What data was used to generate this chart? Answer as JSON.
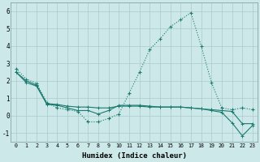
{
  "xlabel": "Humidex (Indice chaleur)",
  "background_color": "#cce8e8",
  "grid_color": "#aacccc",
  "line_color": "#1a7a6e",
  "xlim": [
    -0.5,
    23.5
  ],
  "ylim": [
    -1.5,
    6.5
  ],
  "yticks": [
    -1,
    0,
    1,
    2,
    3,
    4,
    5,
    6
  ],
  "xticks": [
    0,
    1,
    2,
    3,
    4,
    5,
    6,
    7,
    8,
    9,
    10,
    11,
    12,
    13,
    14,
    15,
    16,
    17,
    18,
    19,
    20,
    21,
    22,
    23
  ],
  "series1_x": [
    0,
    1,
    2,
    3,
    4,
    5,
    6,
    7,
    8,
    9,
    10,
    11,
    12,
    13,
    14,
    15,
    16,
    17,
    18,
    19,
    20,
    21,
    22,
    23
  ],
  "series1_y": [
    2.7,
    2.1,
    1.85,
    0.75,
    0.45,
    0.35,
    0.25,
    -0.35,
    -0.35,
    -0.15,
    0.1,
    1.3,
    2.5,
    3.8,
    4.4,
    5.1,
    5.5,
    5.9,
    4.0,
    1.9,
    0.45,
    0.35,
    0.45,
    0.35
  ],
  "series2_x": [
    0,
    1,
    2,
    3,
    4,
    5,
    6,
    7,
    8,
    9,
    10,
    11,
    12,
    13,
    14,
    15,
    16,
    17,
    18,
    19,
    20,
    21,
    22,
    23
  ],
  "series2_y": [
    2.5,
    2.0,
    1.75,
    0.7,
    0.65,
    0.55,
    0.5,
    0.5,
    0.45,
    0.45,
    0.55,
    0.55,
    0.55,
    0.5,
    0.5,
    0.5,
    0.5,
    0.45,
    0.4,
    0.35,
    0.3,
    0.25,
    -0.45,
    -0.45
  ],
  "series3_x": [
    0,
    1,
    2,
    3,
    4,
    5,
    6,
    7,
    8,
    9,
    10,
    11,
    12,
    13,
    14,
    15,
    16,
    17,
    18,
    19,
    20,
    21,
    22,
    23
  ],
  "series3_y": [
    2.5,
    1.9,
    1.7,
    0.65,
    0.6,
    0.45,
    0.3,
    0.3,
    0.1,
    0.3,
    0.6,
    0.6,
    0.6,
    0.55,
    0.5,
    0.5,
    0.5,
    0.45,
    0.4,
    0.3,
    0.2,
    -0.4,
    -1.15,
    -0.55
  ]
}
